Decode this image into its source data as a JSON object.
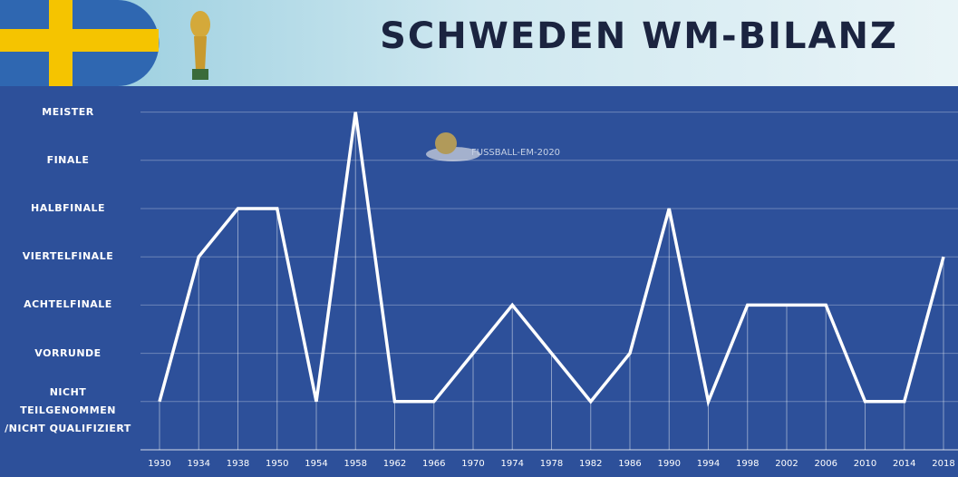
{
  "chart_data": {
    "type": "line",
    "title": "SCHWEDEN WM-BILANZ",
    "watermark": "FUSSBALL-EM-2020",
    "categories": [
      "1930",
      "1934",
      "1938",
      "1950",
      "1954",
      "1958",
      "1962",
      "1966",
      "1970",
      "1974",
      "1978",
      "1982",
      "1986",
      "1990",
      "1994",
      "1998",
      "2002",
      "2006",
      "2010",
      "2014",
      "2018"
    ],
    "series": [
      {
        "name": "Schweden",
        "color": "#ffffff",
        "values": [
          0,
          3,
          4,
          4,
          0,
          6,
          0,
          0,
          1,
          2,
          1,
          0,
          1,
          4,
          0,
          2,
          2,
          2,
          0,
          0,
          3
        ]
      }
    ],
    "ylim": [
      -1,
      6.5
    ],
    "yticks": [
      {
        "value": 0,
        "label": "NICHT TEILGENOMMEN /NICHT QUALIFIZIERT"
      },
      {
        "value": 1,
        "label": "VORRUNDE"
      },
      {
        "value": 2,
        "label": "ACHTELFINALE"
      },
      {
        "value": 3,
        "label": "VIERTELFINALE"
      },
      {
        "value": 4,
        "label": "HALBFINALE"
      },
      {
        "value": 5,
        "label": "FINALE"
      },
      {
        "value": 6,
        "label": "MEISTER"
      }
    ],
    "grid": true
  }
}
